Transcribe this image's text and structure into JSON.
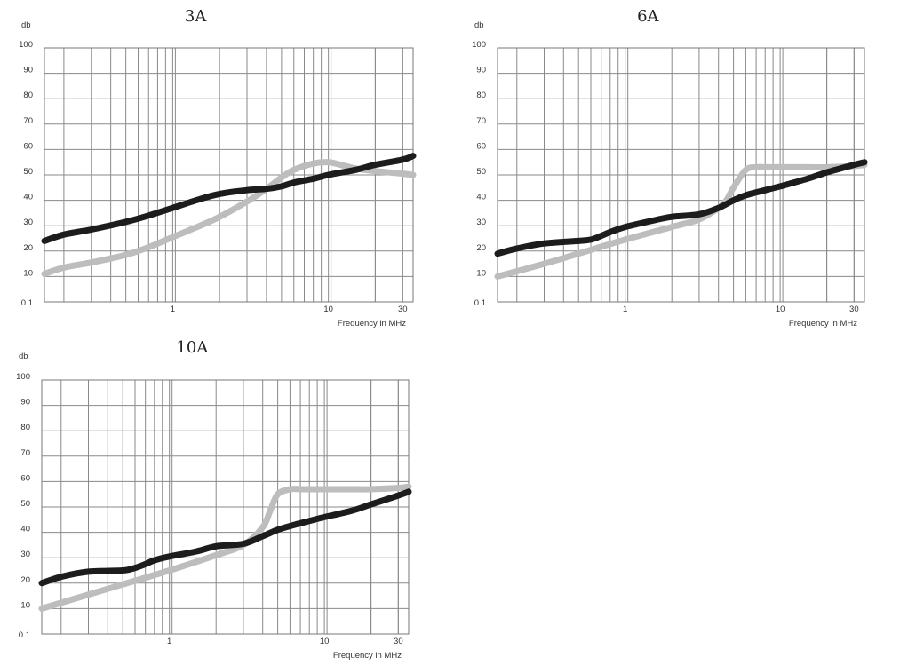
{
  "chart_data": [
    {
      "type": "line",
      "title": "3A",
      "ylabel": "db",
      "xlabel": "Frequency in MHz",
      "xscale": "log",
      "xlim": [
        0.15,
        35
      ],
      "ylim": [
        0,
        100
      ],
      "yticks": [
        "0.1",
        "10",
        "20",
        "30",
        "40",
        "50",
        "60",
        "70",
        "80",
        "90",
        "100"
      ],
      "xticks": [
        {
          "value": 1,
          "label": "1"
        },
        {
          "value": 10,
          "label": "10"
        },
        {
          "value": 30,
          "label": "30"
        }
      ],
      "grid": true,
      "series": [
        {
          "color": "#1c1c1c",
          "x": [
            0.15,
            0.2,
            0.3,
            0.5,
            0.7,
            1,
            1.5,
            2,
            3,
            4,
            5,
            6,
            8,
            10,
            15,
            20,
            30,
            35
          ],
          "y": [
            24,
            26.5,
            28.5,
            31.5,
            34,
            37,
            40.5,
            42.5,
            44,
            44.5,
            45.5,
            47,
            48.5,
            50,
            52,
            54,
            56,
            57.5
          ]
        },
        {
          "color": "#bdbdbd",
          "x": [
            0.15,
            0.2,
            0.3,
            0.5,
            0.7,
            1,
            1.5,
            2,
            3,
            4,
            5,
            6,
            8,
            10,
            12,
            15,
            20,
            30,
            35
          ],
          "y": [
            11,
            13.5,
            15.5,
            18.5,
            21.5,
            25.5,
            30,
            33.5,
            39.5,
            44.5,
            49,
            52,
            54.5,
            55,
            54,
            52.5,
            51.5,
            50.5,
            50
          ]
        }
      ]
    },
    {
      "type": "line",
      "title": "6A",
      "ylabel": "db",
      "xlabel": "Frequency in MHz",
      "xscale": "log",
      "xlim": [
        0.15,
        35
      ],
      "ylim": [
        0,
        100
      ],
      "yticks": [
        "0.1",
        "10",
        "20",
        "30",
        "40",
        "50",
        "60",
        "70",
        "80",
        "90",
        "100"
      ],
      "xticks": [
        {
          "value": 1,
          "label": "1"
        },
        {
          "value": 10,
          "label": "10"
        },
        {
          "value": 30,
          "label": "30"
        }
      ],
      "grid": true,
      "series": [
        {
          "color": "#1c1c1c",
          "x": [
            0.15,
            0.2,
            0.3,
            0.5,
            0.6,
            0.7,
            0.8,
            1,
            1.5,
            2,
            3,
            4,
            5,
            6,
            8,
            10,
            15,
            20,
            30,
            35
          ],
          "y": [
            19,
            21,
            23,
            24,
            24.5,
            26,
            27.5,
            29.5,
            32,
            33.5,
            34.5,
            37,
            40,
            42,
            44,
            45.5,
            48.5,
            51,
            54,
            55
          ]
        },
        {
          "color": "#bdbdbd",
          "x": [
            0.15,
            0.3,
            0.5,
            1,
            2,
            3,
            4,
            4.5,
            5,
            6,
            7,
            8,
            10,
            15,
            20,
            30,
            35
          ],
          "y": [
            10,
            15,
            19,
            24.5,
            29.5,
            32.5,
            37,
            40,
            45,
            52,
            53,
            53,
            53,
            53,
            53,
            53.5,
            54
          ]
        }
      ]
    },
    {
      "type": "line",
      "title": "10A",
      "ylabel": "db",
      "xlabel": "Frequency in MHz",
      "xscale": "log",
      "xlim": [
        0.15,
        35
      ],
      "ylim": [
        0,
        100
      ],
      "yticks": [
        "0.1",
        "10",
        "20",
        "30",
        "40",
        "50",
        "60",
        "70",
        "80",
        "90",
        "100"
      ],
      "xticks": [
        {
          "value": 1,
          "label": "1"
        },
        {
          "value": 10,
          "label": "10"
        },
        {
          "value": 30,
          "label": "30"
        }
      ],
      "grid": true,
      "series": [
        {
          "color": "#1c1c1c",
          "x": [
            0.15,
            0.2,
            0.3,
            0.5,
            0.6,
            0.7,
            0.8,
            1,
            1.5,
            2,
            3,
            4,
            5,
            6,
            8,
            10,
            15,
            20,
            30,
            35
          ],
          "y": [
            20,
            22.5,
            24.5,
            25,
            26,
            27.5,
            29,
            30.5,
            32.5,
            34.5,
            35.5,
            38.5,
            41,
            42.5,
            44.5,
            46,
            48.5,
            51,
            54.5,
            56
          ]
        },
        {
          "color": "#bdbdbd",
          "x": [
            0.15,
            0.3,
            0.5,
            1,
            2,
            3,
            4,
            4.5,
            5,
            6,
            7,
            8,
            10,
            15,
            20,
            30,
            35
          ],
          "y": [
            10,
            15.5,
            19.5,
            25,
            31,
            35,
            42,
            49,
            55,
            57,
            57,
            57,
            57,
            57,
            57,
            57.5,
            58
          ]
        }
      ]
    }
  ]
}
